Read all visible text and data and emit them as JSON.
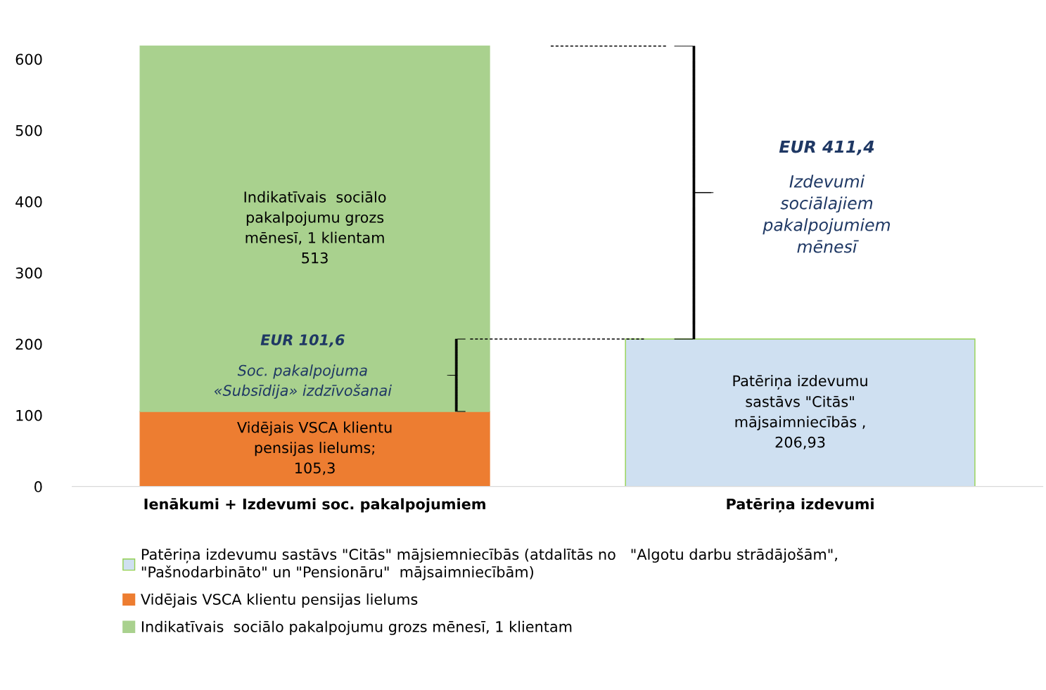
{
  "chart_data": {
    "type": "bar",
    "stacked": true,
    "categories": [
      "Ienākumi + Izdevumi soc. pakalpojumiem",
      "Patēriņa izdevumi"
    ],
    "series": [
      {
        "name": "Patēriņa izdevumu sastāvs \"Citās\" mājsiemniecībās (atdalītās no   \"Algotu darbu strādājošām\",\n\"Pašnodarbināto\" un \"Pensionāru\"  mājsaimniecībām)",
        "color": "#cfe0f1",
        "values": [
          null,
          206.93
        ],
        "value_labels": [
          null,
          "Patēriņa izdevumu\nsastāvs \"Citās\"\nmājsaimniecībās ,\n206,93"
        ]
      },
      {
        "name": "Vidējais VSCA klientu pensijas lielums",
        "color": "#ed7d31",
        "values": [
          105.3,
          null
        ],
        "value_labels": [
          "Vidējais VSCA klientu\npensijas lielums;\n105,3",
          null
        ]
      },
      {
        "name": "Indikatīvais  sociālo pakalpojumu grozs mēnesī, 1 klientam",
        "color": "#a9d18e",
        "values": [
          513,
          null
        ],
        "value_labels": [
          "Indikatīvais  sociālo\npakalpojumu grozs\nmēnesī, 1 klientam\n513",
          null
        ]
      }
    ],
    "annotations": [
      "EUR 411,4\nIzdevumi\nsociālajiem\npakalpojumiem\nmēnesī",
      "EUR 101,6\nSoc. pakalpojuma\n«Subsīdija» izdzīvošanai"
    ],
    "ylim": [
      0,
      620
    ],
    "yticks": [
      0,
      100,
      200,
      300,
      400,
      500,
      600
    ],
    "grid": false,
    "legend": "bottom"
  }
}
